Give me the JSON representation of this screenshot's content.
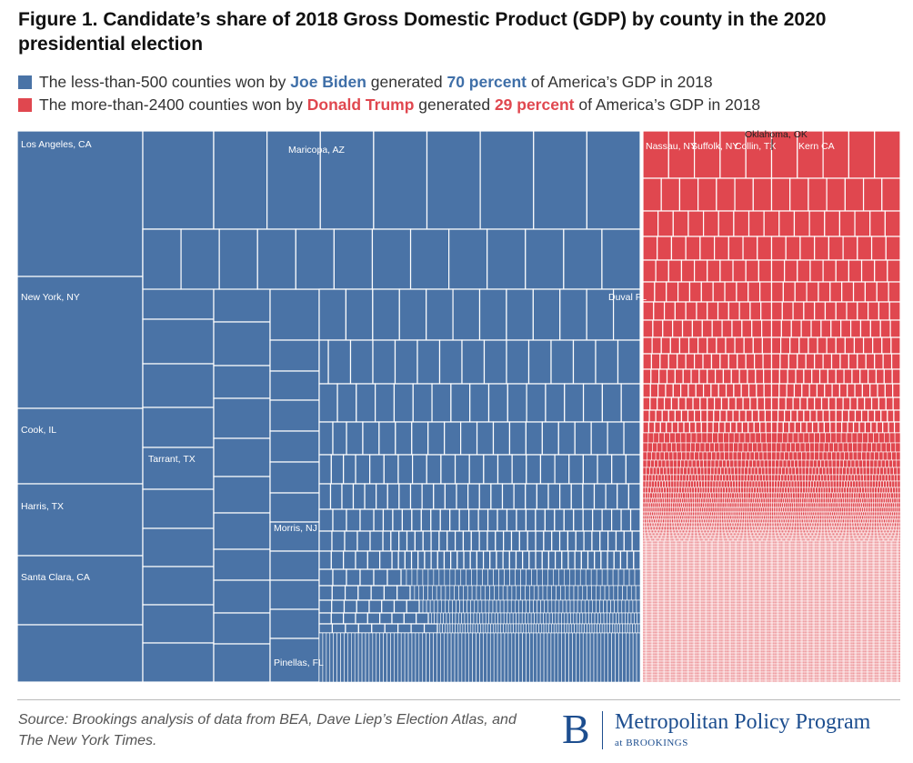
{
  "figure": {
    "title": "Figure 1. Candidate’s share of 2018 Gross Domestic Product (GDP) by county in the 2020 presidential election",
    "legend": {
      "biden": {
        "pre": "The less-than-500 counties won by ",
        "name": "Joe Biden",
        "mid": " generated ",
        "pct": "70 percent",
        "post": " of America’s GDP in 2018"
      },
      "trump": {
        "pre": "The more-than-2400 counties won by ",
        "name": "Donald Trump",
        "mid": " generated ",
        "pct": "29 percent",
        "post": " of America’s GDP in 2018"
      }
    },
    "source": "Source: Brookings analysis of data from BEA, Dave Liep’s Election Atlas, and The New York Times.",
    "brand": {
      "logo": "B",
      "name": "Metropolitan Policy Program",
      "sub": "at BROOKINGS"
    }
  },
  "colors": {
    "biden": "#4a73a6",
    "trump": "#e0474f",
    "biden_text": "#3f6fa8",
    "trump_text": "#e0474f",
    "grid": "#ffffff"
  },
  "chart_data": {
    "type": "treemap",
    "series": [
      {
        "name": "Joe Biden",
        "share_of_gdp_percent": 70,
        "counties": "less-than-500"
      },
      {
        "name": "Donald Trump",
        "share_of_gdp_percent": 29,
        "counties": "more-than-2400"
      }
    ],
    "labeled_counties": {
      "biden": [
        {
          "label": "Los Angeles, CA"
        },
        {
          "label": "New York, NY"
        },
        {
          "label": "Cook, IL"
        },
        {
          "label": "Harris, TX"
        },
        {
          "label": "Santa Clara, CA"
        },
        {
          "label": "Tarrant, TX"
        },
        {
          "label": "Maricopa, AZ"
        },
        {
          "label": "Duval FL"
        },
        {
          "label": "Morris, NJ"
        },
        {
          "label": "Pinellas, FL"
        }
      ],
      "trump": [
        {
          "label": "Nassau, NY"
        },
        {
          "label": "Suffolk, NY"
        },
        {
          "label": "Collin, TX"
        },
        {
          "label": "Oklahoma, OK"
        },
        {
          "label": "Kern CA"
        }
      ]
    }
  }
}
